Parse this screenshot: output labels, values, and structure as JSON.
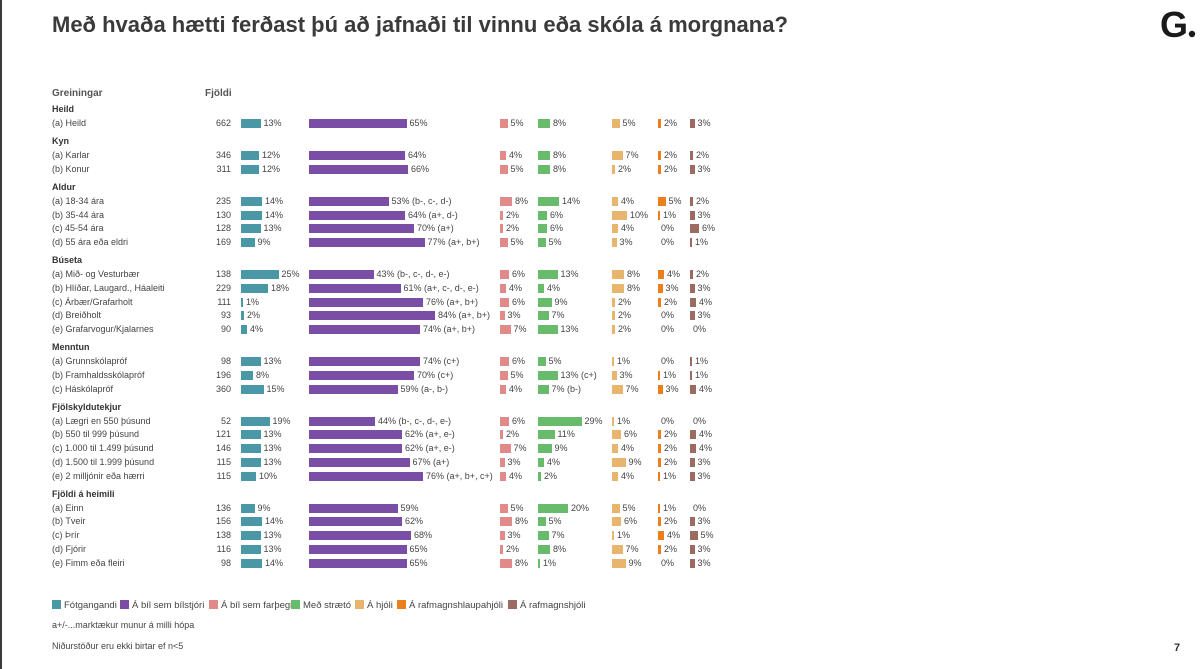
{
  "title": "Með hvaða hætti ferðast þú að jafnaði til vinnu eða skóla á morgnana?",
  "logo_letter": "G",
  "header": {
    "groups_label": "Greiningar",
    "count_label": "Fjöldi"
  },
  "page_number": "7",
  "notes": {
    "significance": "a+/-...marktækur munur á milli hópa",
    "suppression": "Niðurstöður eru ekki birtar ef n<5"
  },
  "chart_data": {
    "type": "bar",
    "series": [
      {
        "name": "Fótgangandi",
        "color": "#4a97a5"
      },
      {
        "name": "Á bíl sem bílstjóri",
        "color": "#7b4ea6"
      },
      {
        "name": "Á bíl sem farþegi",
        "color": "#e08b89"
      },
      {
        "name": "Með strætó",
        "color": "#67bb6a"
      },
      {
        "name": "Á hjóli",
        "color": "#e8b56e"
      },
      {
        "name": "Á rafmagnshlaupahjóli",
        "color": "#ec7f1b"
      },
      {
        "name": "Á rafmagnshjóli",
        "color": "#9b6b62"
      }
    ],
    "groups": [
      {
        "name": "Heild",
        "rows": [
          {
            "label": "(a) Heild",
            "n": 662,
            "values": [
              13,
              65,
              5,
              8,
              5,
              2,
              3
            ],
            "labels": [
              "13%",
              "65%",
              "5%",
              "8%",
              "5%",
              "2%",
              "3%"
            ]
          }
        ]
      },
      {
        "name": "Kyn",
        "rows": [
          {
            "label": "(a) Karlar",
            "n": 346,
            "values": [
              12,
              64,
              4,
              8,
              7,
              2,
              2
            ],
            "labels": [
              "12%",
              "64%",
              "4%",
              "8%",
              "7%",
              "2%",
              "2%"
            ]
          },
          {
            "label": "(b) Konur",
            "n": 311,
            "values": [
              12,
              66,
              5,
              8,
              2,
              2,
              3
            ],
            "labels": [
              "12%",
              "66%",
              "5%",
              "8%",
              "2%",
              "2%",
              "3%"
            ]
          }
        ]
      },
      {
        "name": "Aldur",
        "rows": [
          {
            "label": "(a) 18-34 ára",
            "n": 235,
            "values": [
              14,
              53,
              8,
              14,
              4,
              5,
              2
            ],
            "labels": [
              "14%",
              "53% (b-, c-, d-)",
              "8%",
              "14%",
              "4%",
              "5%",
              "2%"
            ]
          },
          {
            "label": "(b) 35-44 ára",
            "n": 130,
            "values": [
              14,
              64,
              2,
              6,
              10,
              1,
              3
            ],
            "labels": [
              "14%",
              "64% (a+, d-)",
              "2%",
              "6%",
              "10%",
              "1%",
              "3%"
            ]
          },
          {
            "label": "(c) 45-54 ára",
            "n": 128,
            "values": [
              13,
              70,
              2,
              6,
              4,
              0,
              6
            ],
            "labels": [
              "13%",
              "70% (a+)",
              "2%",
              "6%",
              "4%",
              "0%",
              "6%"
            ]
          },
          {
            "label": "(d) 55 ára eða eldri",
            "n": 169,
            "values": [
              9,
              77,
              5,
              5,
              3,
              0,
              1
            ],
            "labels": [
              "9%",
              "77% (a+, b+)",
              "5%",
              "5%",
              "3%",
              "0%",
              "1%"
            ]
          }
        ]
      },
      {
        "name": "Búseta",
        "rows": [
          {
            "label": "(a) Mið- og Vesturbær",
            "n": 138,
            "values": [
              25,
              43,
              6,
              13,
              8,
              4,
              2
            ],
            "labels": [
              "25%",
              "43% (b-, c-, d-, e-)",
              "6%",
              "13%",
              "8%",
              "4%",
              "2%"
            ]
          },
          {
            "label": "(b) Hlíðar, Laugard., Háaleiti",
            "n": 229,
            "values": [
              18,
              61,
              4,
              4,
              8,
              3,
              3
            ],
            "labels": [
              "18%",
              "61% (a+, c-, d-, e-)",
              "4%",
              "4%",
              "8%",
              "3%",
              "3%"
            ]
          },
          {
            "label": "(c) Árbær/Grafarholt",
            "n": 111,
            "values": [
              1,
              76,
              6,
              9,
              2,
              2,
              4
            ],
            "labels": [
              "1%",
              "76% (a+, b+)",
              "6%",
              "9%",
              "2%",
              "2%",
              "4%"
            ]
          },
          {
            "label": "(d) Breiðholt",
            "n": 93,
            "values": [
              2,
              84,
              3,
              7,
              2,
              0,
              3
            ],
            "labels": [
              "2%",
              "84% (a+, b+)",
              "3%",
              "7%",
              "2%",
              "0%",
              "3%"
            ]
          },
          {
            "label": "(e) Grafarvogur/Kjalarnes",
            "n": 90,
            "values": [
              4,
              74,
              7,
              13,
              2,
              0,
              0
            ],
            "labels": [
              "4%",
              "74% (a+, b+)",
              "7%",
              "13%",
              "2%",
              "0%",
              "0%"
            ]
          }
        ]
      },
      {
        "name": "Menntun",
        "rows": [
          {
            "label": "(a) Grunnskólapróf",
            "n": 98,
            "values": [
              13,
              74,
              6,
              5,
              1,
              0,
              1
            ],
            "labels": [
              "13%",
              "74% (c+)",
              "6%",
              "5%",
              "1%",
              "0%",
              "1%"
            ]
          },
          {
            "label": "(b) Framhaldsskólapróf",
            "n": 196,
            "values": [
              8,
              70,
              5,
              13,
              3,
              1,
              1
            ],
            "labels": [
              "8%",
              "70% (c+)",
              "5%",
              "13% (c+)",
              "3%",
              "1%",
              "1%"
            ]
          },
          {
            "label": "(c) Háskólapróf",
            "n": 360,
            "values": [
              15,
              59,
              4,
              7,
              7,
              3,
              4
            ],
            "labels": [
              "15%",
              "59% (a-, b-)",
              "4%",
              "7% (b-)",
              "7%",
              "3%",
              "4%"
            ]
          }
        ]
      },
      {
        "name": "Fjölskyldutekjur",
        "rows": [
          {
            "label": "(a) Lægri en 550 þúsund",
            "n": 52,
            "values": [
              19,
              44,
              6,
              29,
              1,
              0,
              0
            ],
            "labels": [
              "19%",
              "44% (b-, c-, d-, e-)",
              "6%",
              "29%",
              "1%",
              "0%",
              "0%"
            ]
          },
          {
            "label": "(b) 550 til 999 þúsund",
            "n": 121,
            "values": [
              13,
              62,
              2,
              11,
              6,
              2,
              4
            ],
            "labels": [
              "13%",
              "62% (a+, e-)",
              "2%",
              "11%",
              "6%",
              "2%",
              "4%"
            ]
          },
          {
            "label": "(c) 1.000 til 1.499 þúsund",
            "n": 146,
            "values": [
              13,
              62,
              7,
              9,
              4,
              2,
              4
            ],
            "labels": [
              "13%",
              "62% (a+, e-)",
              "7%",
              "9%",
              "4%",
              "2%",
              "4%"
            ]
          },
          {
            "label": "(d) 1.500 til 1.999 þúsund",
            "n": 115,
            "values": [
              13,
              67,
              3,
              4,
              9,
              2,
              3
            ],
            "labels": [
              "13%",
              "67% (a+)",
              "3%",
              "4%",
              "9%",
              "2%",
              "3%"
            ]
          },
          {
            "label": "(e) 2 milljónir eða hærri",
            "n": 115,
            "values": [
              10,
              76,
              4,
              2,
              4,
              1,
              3
            ],
            "labels": [
              "10%",
              "76% (a+, b+, c+)",
              "4%",
              "2%",
              "4%",
              "1%",
              "3%"
            ]
          }
        ]
      },
      {
        "name": "Fjöldi á heimili",
        "rows": [
          {
            "label": "(a) Einn",
            "n": 136,
            "values": [
              9,
              59,
              5,
              20,
              5,
              1,
              0
            ],
            "labels": [
              "9%",
              "59%",
              "5%",
              "20%",
              "5%",
              "1%",
              "0%"
            ]
          },
          {
            "label": "(b) Tveir",
            "n": 156,
            "values": [
              14,
              62,
              8,
              5,
              6,
              2,
              3
            ],
            "labels": [
              "14%",
              "62%",
              "8%",
              "5%",
              "6%",
              "2%",
              "3%"
            ]
          },
          {
            "label": "(c) Þrír",
            "n": 138,
            "values": [
              13,
              68,
              3,
              7,
              1,
              4,
              5
            ],
            "labels": [
              "13%",
              "68%",
              "3%",
              "7%",
              "1%",
              "4%",
              "5%"
            ]
          },
          {
            "label": "(d) Fjórir",
            "n": 116,
            "values": [
              13,
              65,
              2,
              8,
              7,
              2,
              3
            ],
            "labels": [
              "13%",
              "65%",
              "2%",
              "8%",
              "7%",
              "2%",
              "3%"
            ]
          },
          {
            "label": "(e) Fimm eða fleiri",
            "n": 98,
            "values": [
              14,
              65,
              8,
              1,
              9,
              0,
              3
            ],
            "labels": [
              "14%",
              "65%",
              "8%",
              "1%",
              "9%",
              "0%",
              "3%"
            ]
          }
        ]
      }
    ]
  }
}
